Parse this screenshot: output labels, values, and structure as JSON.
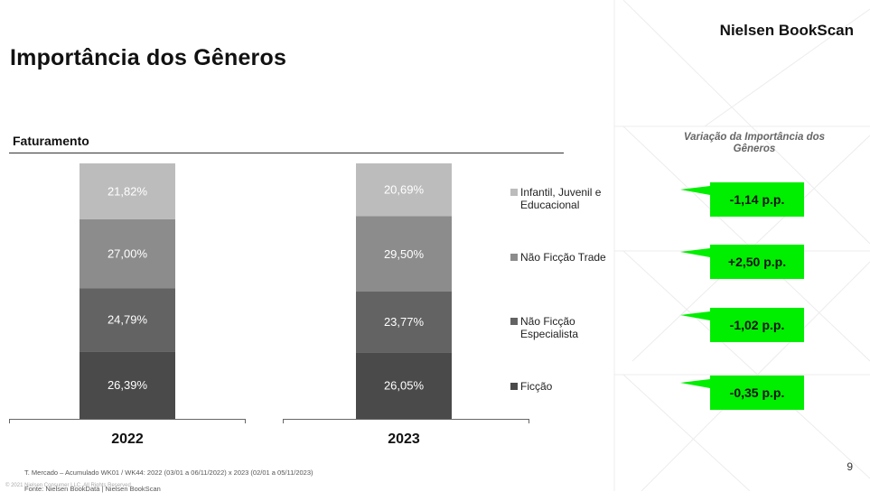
{
  "brand": "Nielsen BookScan",
  "title": "Importância dos Gêneros",
  "section_label": "Faturamento",
  "variation_title": "Variação da Importância dos Gêneros",
  "footnote_lines": [
    "T. Mercado – Acumulado WK01 / WK44: 2022 (03/01 a 06/11/2022) x 2023 (02/01 a 05/11/2023)",
    "Fonte: Nielsen BookData | Nielsen BookScan"
  ],
  "copyright": "© 2021 Nielsen Consumer LLC. All Rights Reserved.",
  "page_number": "9",
  "colors": {
    "ficcao": "#4a4a4a",
    "nao_ficcao_especialista": "#636363",
    "nao_ficcao_trade": "#8c8c8c",
    "infantil": "#bcbcbc",
    "badge": "#00ee00"
  },
  "chart_data": {
    "type": "bar",
    "stacked": true,
    "categories": [
      "2022",
      "2023"
    ],
    "ylim": [
      0,
      100
    ],
    "series": [
      {
        "name": "Ficção",
        "values": [
          26.39,
          26.05
        ],
        "labels": [
          "26,39%",
          "26,05%"
        ]
      },
      {
        "name": "Não Ficção Especialista",
        "values": [
          24.79,
          23.77
        ],
        "labels": [
          "24,79%",
          "23,77%"
        ]
      },
      {
        "name": "Não Ficção Trade",
        "values": [
          27.0,
          29.5
        ],
        "labels": [
          "27,00%",
          "29,50%"
        ]
      },
      {
        "name": "Infantil, Juvenil e Educacional",
        "values": [
          21.82,
          20.69
        ],
        "labels": [
          "21,82%",
          "20,69%"
        ]
      }
    ],
    "variation": [
      {
        "series": "Infantil, Juvenil e Educacional",
        "value": -1.14,
        "label": "-1,14 p.p."
      },
      {
        "series": "Não Ficção Trade",
        "value": 2.5,
        "label": "+2,50 p.p."
      },
      {
        "series": "Não Ficção Especialista",
        "value": -1.02,
        "label": "-1,02 p.p."
      },
      {
        "series": "Ficção",
        "value": -0.35,
        "label": "-0,35 p.p."
      }
    ]
  }
}
